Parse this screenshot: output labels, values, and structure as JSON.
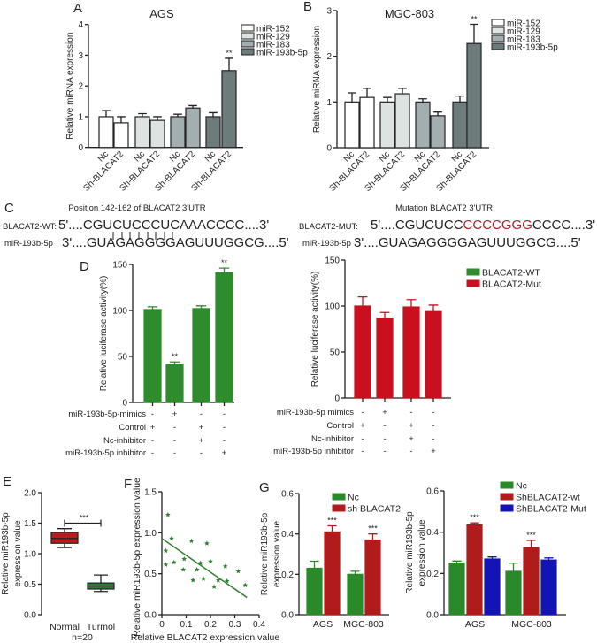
{
  "chart_data": [
    {
      "id": "A",
      "panel_label": "A",
      "type": "bar",
      "title": "AGS",
      "ylabel": "Relative miRNA expression",
      "ylim": [
        0,
        4
      ],
      "yticks": [
        "0",
        "1",
        "2",
        "3",
        "4"
      ],
      "xlabels": [
        "Nc",
        "Sh-BLACAT2",
        "Nc",
        "Sh-BLACAT2",
        "Nc",
        "Sh-BLACAT2",
        "Nc",
        "Sh-BLACAT2"
      ],
      "legend_position": "top-right",
      "series": [
        {
          "name": "miR-152",
          "values": [
            1.0,
            0.8
          ],
          "errors": [
            0.2,
            0.2
          ],
          "color": "#ffffff"
        },
        {
          "name": "miR-129",
          "values": [
            1.0,
            0.88
          ],
          "errors": [
            0.1,
            0.12
          ],
          "color": "#dde3e0"
        },
        {
          "name": "miR-183",
          "values": [
            1.0,
            1.28
          ],
          "errors": [
            0.08,
            0.08
          ],
          "color": "#a2aeb0"
        },
        {
          "name": "miR-193b-5p",
          "values": [
            1.0,
            2.5
          ],
          "errors": [
            0.13,
            0.4
          ],
          "color": "#6e7b7b"
        }
      ],
      "significance": [
        {
          "series": 3,
          "index": 1,
          "label": "**"
        }
      ]
    },
    {
      "id": "B",
      "panel_label": "B",
      "type": "bar",
      "title": "MGC-803",
      "ylabel": "Relative miRNA expression",
      "ylim": [
        0,
        3
      ],
      "yticks": [
        "0",
        "1",
        "2",
        "3"
      ],
      "xlabels": [
        "Nc",
        "Sh-BLACAT2",
        "Nc",
        "Sh-BLACAT2",
        "Nc",
        "Sh-BLACAT2",
        "Nc",
        "Sh-BLACAT2"
      ],
      "legend_position": "top-right",
      "series": [
        {
          "name": "miR-152",
          "values": [
            1.0,
            1.1
          ],
          "errors": [
            0.2,
            0.2
          ],
          "color": "#ffffff"
        },
        {
          "name": "miR-129",
          "values": [
            1.0,
            1.18
          ],
          "errors": [
            0.1,
            0.12
          ],
          "color": "#dde3e0"
        },
        {
          "name": "miR-183",
          "values": [
            1.0,
            0.7
          ],
          "errors": [
            0.07,
            0.08
          ],
          "color": "#a2aeb0"
        },
        {
          "name": "miR-193b-5p",
          "values": [
            1.0,
            2.28
          ],
          "errors": [
            0.13,
            0.42
          ],
          "color": "#6e7b7b"
        }
      ],
      "significance": [
        {
          "series": 3,
          "index": 1,
          "label": "**"
        }
      ]
    },
    {
      "id": "D1",
      "panel_label": "D",
      "type": "bar",
      "ylabel": "Relative luciferase activity(%)",
      "ylim": [
        0,
        150
      ],
      "yticks": [
        "0",
        "50",
        "100",
        "150"
      ],
      "series": [
        {
          "name": "BLACAT2-WT",
          "values": [
            101,
            41,
            102,
            141
          ],
          "errors": [
            3,
            3,
            3,
            5
          ],
          "color": "#2e8b2e"
        }
      ],
      "significance": [
        {
          "series": 0,
          "index": 1,
          "label": "**"
        },
        {
          "series": 0,
          "index": 3,
          "label": "**"
        }
      ],
      "conditions": [
        {
          "label": "miR-193b-5p-mimics",
          "signs": [
            "-",
            "+",
            "-",
            "-"
          ]
        },
        {
          "label": "Control",
          "signs": [
            "+",
            "-",
            "+",
            "-"
          ]
        },
        {
          "label": "Nc-inhibitor",
          "signs": [
            "-",
            "-",
            "+",
            "-"
          ]
        },
        {
          "label": "miR-193b-5p inhibitor",
          "signs": [
            "-",
            "-",
            "-",
            "+"
          ]
        }
      ]
    },
    {
      "id": "D2",
      "panel_label": "",
      "type": "bar",
      "ylabel": "Relative luciferase activity(%)",
      "ylim": [
        0,
        150
      ],
      "yticks": [
        "0",
        "50",
        "100",
        "150"
      ],
      "legend": [
        {
          "name": "BLACAT2-WT",
          "color": "#2e8b2e"
        },
        {
          "name": "BLACAT2-Mut",
          "color": "#c8101e"
        }
      ],
      "legend_position": "top-right",
      "series": [
        {
          "name": "BLACAT2-Mut",
          "values": [
            100,
            87,
            99,
            94
          ],
          "errors": [
            10,
            6,
            8,
            7
          ],
          "color": "#c8101e"
        }
      ],
      "significance": [],
      "conditions": [
        {
          "label": "miR-193b-5p mimics",
          "signs": [
            "-",
            "+",
            "-",
            "-"
          ]
        },
        {
          "label": "Control",
          "signs": [
            "+",
            "-",
            "+",
            "-"
          ]
        },
        {
          "label": "Nc-inhibitor",
          "signs": [
            "-",
            "-",
            "+",
            "-"
          ]
        },
        {
          "label": "miR-193b-5p inhibitor",
          "signs": [
            "-",
            "-",
            "-",
            "+"
          ]
        }
      ]
    },
    {
      "id": "E",
      "panel_label": "E",
      "type": "box",
      "ylabel": [
        "Relative miR193b-5p",
        "expression value"
      ],
      "ylim": [
        0,
        2.0
      ],
      "yticks": [
        "0.0",
        "0.5",
        "1.0",
        "1.5",
        "2.0"
      ],
      "categories": [
        "Normal",
        "Turmol"
      ],
      "note": "n=20",
      "boxes": [
        {
          "min": 1.1,
          "q1": 1.17,
          "median": 1.25,
          "q3": 1.35,
          "max": 1.41,
          "color": "#b81c1c"
        },
        {
          "min": 0.38,
          "q1": 0.42,
          "median": 0.47,
          "q3": 0.52,
          "max": 0.65,
          "color": "#2b7a3a"
        }
      ],
      "significance": {
        "label": "***",
        "y": 1.5
      }
    },
    {
      "id": "F",
      "panel_label": "F",
      "type": "scatter",
      "xlabel": "Relative BLACAT2 expression value",
      "ylabel": "Relative miR193b-5p expression value",
      "xlim": [
        0,
        0.4
      ],
      "ylim": [
        0,
        1.5
      ],
      "xticks": [
        "0",
        "0.1",
        "0.2",
        "0.3",
        "0.4"
      ],
      "yticks": [
        "0.0",
        "0.5",
        "1.0",
        "1.5"
      ],
      "color": "#2f7d2f",
      "points": [
        [
          0.025,
          1.22
        ],
        [
          0.016,
          0.78
        ],
        [
          0.016,
          0.61
        ],
        [
          0.04,
          0.93
        ],
        [
          0.05,
          0.64
        ],
        [
          0.092,
          0.68
        ],
        [
          0.122,
          0.9
        ],
        [
          0.088,
          0.55
        ],
        [
          0.128,
          0.42
        ],
        [
          0.144,
          0.55
        ],
        [
          0.159,
          0.63
        ],
        [
          0.171,
          0.44
        ],
        [
          0.185,
          0.87
        ],
        [
          0.2,
          0.65
        ],
        [
          0.215,
          0.34
        ],
        [
          0.232,
          0.42
        ],
        [
          0.261,
          0.59
        ],
        [
          0.268,
          0.41
        ],
        [
          0.314,
          0.53
        ],
        [
          0.343,
          0.36
        ]
      ],
      "fit_line": [
        [
          0,
          0.93
        ],
        [
          0.35,
          0.21
        ]
      ]
    },
    {
      "id": "G1",
      "panel_label": "G",
      "type": "bar",
      "ylabel": [
        "Relative miR193b-5p",
        "expression value"
      ],
      "ylim": [
        0,
        0.6
      ],
      "yticks": [
        "0.0",
        "0.2",
        "0.4",
        "0.6"
      ],
      "categories": [
        "AGS",
        "MGC-803"
      ],
      "legend_position": "top",
      "series": [
        {
          "name": "Nc",
          "values": [
            0.23,
            0.2
          ],
          "errors": [
            0.035,
            0.015
          ],
          "color": "#2a8a2a"
        },
        {
          "name": "sh BLACAT2",
          "values": [
            0.41,
            0.37
          ],
          "errors": [
            0.03,
            0.03
          ],
          "color": "#b01c1c"
        }
      ],
      "significance": [
        {
          "series": 1,
          "index": 0,
          "label": "***"
        },
        {
          "series": 1,
          "index": 1,
          "label": "***"
        }
      ]
    },
    {
      "id": "G2",
      "panel_label": "",
      "type": "bar",
      "ylabel": [
        "Relative miR193b-5p",
        "expression value"
      ],
      "ylim": [
        0,
        0.6
      ],
      "yticks": [
        "0.0",
        "0.2",
        "0.4",
        "0.6"
      ],
      "categories": [
        "AGS",
        "MGC-803"
      ],
      "legend_position": "top-right",
      "series": [
        {
          "name": "Nc",
          "values": [
            0.25,
            0.21
          ],
          "errors": [
            0.01,
            0.04
          ],
          "color": "#2a8a2a"
        },
        {
          "name": "ShBLACAT2-wt",
          "values": [
            0.435,
            0.325
          ],
          "errors": [
            0.01,
            0.035
          ],
          "color": "#b01c1c"
        },
        {
          "name": "ShBLACAT2-Mut",
          "values": [
            0.27,
            0.265
          ],
          "errors": [
            0.01,
            0.01
          ],
          "color": "#1414b4"
        }
      ],
      "significance": [
        {
          "series": 1,
          "index": 0,
          "label": "***"
        },
        {
          "series": 1,
          "index": 1,
          "label": "***"
        }
      ]
    }
  ],
  "panel_c": {
    "panel_label": "C",
    "wt": {
      "title": "Position 142-162 of BLACAT2 3'UTR",
      "label": "BLACAT2-WT:",
      "sequence": "5'....CGUCUCCCUCAAACCCC....3'",
      "mirna_label": "miR-193b-5p",
      "mirna_sequence": "3'....GUAGAGGGGAGUUUGGCG....5'"
    },
    "mut": {
      "title": "Mutation BLACAT2 3'UTR",
      "label": "BLACAT2-MUT:",
      "sequence_start": "5'....CGUCUCC",
      "sequence_mutated": "CCCCGGG",
      "sequence_end": "CCCC....3'",
      "mutation_color": "#b0202a",
      "mirna_label": "miR-193b-5p",
      "mirna_sequence": "3'....GUAGAGGGGAGUUUGGCG....5'"
    }
  }
}
